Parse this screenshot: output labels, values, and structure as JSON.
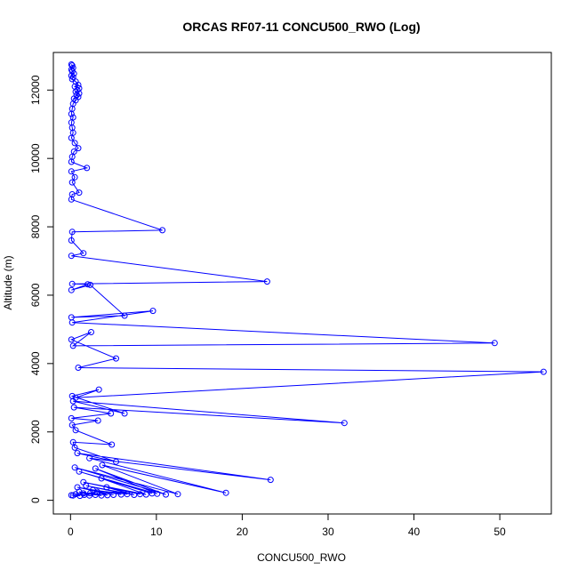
{
  "chart_data": {
    "type": "line",
    "title": "ORCAS RF07-11 CONCU500_RWO (Log)",
    "xlabel": "CONCU500_RWO",
    "ylabel": "Altitude (m)",
    "xlim": [
      -2,
      56
    ],
    "ylim": [
      -400,
      13100
    ],
    "xticks": [
      "0",
      "10",
      "20",
      "30",
      "40",
      "50"
    ],
    "yticks": [
      "0",
      "2000",
      "4000",
      "6000",
      "8000",
      "10000",
      "12000"
    ],
    "series_color": "#0000ff",
    "marker": "open-circle",
    "series": [
      {
        "points": [
          [
            0.1,
            12750
          ],
          [
            0.2,
            12720
          ],
          [
            0.3,
            12650
          ],
          [
            0.1,
            12600
          ],
          [
            0.2,
            12550
          ],
          [
            0.4,
            12480
          ],
          [
            0.1,
            12420
          ],
          [
            0.3,
            12380
          ],
          [
            0.2,
            12320
          ],
          [
            0.6,
            12250
          ],
          [
            0.9,
            12150
          ],
          [
            0.5,
            12100
          ],
          [
            1.0,
            12050
          ],
          [
            0.8,
            12000
          ],
          [
            0.6,
            11950
          ],
          [
            1.0,
            11900
          ],
          [
            0.7,
            11850
          ],
          [
            0.9,
            11800
          ],
          [
            0.4,
            11750
          ],
          [
            0.6,
            11700
          ],
          [
            0.3,
            11600
          ],
          [
            0.2,
            11450
          ],
          [
            0.1,
            11300
          ],
          [
            0.3,
            11200
          ],
          [
            0.1,
            11050
          ],
          [
            0.2,
            10900
          ],
          [
            0.3,
            10750
          ],
          [
            0.1,
            10600
          ],
          [
            0.5,
            10450
          ],
          [
            0.9,
            10300
          ],
          [
            0.4,
            10200
          ],
          [
            0.2,
            10050
          ],
          [
            0.1,
            9900
          ],
          [
            1.9,
            9720
          ],
          [
            0.1,
            9620
          ],
          [
            0.5,
            9450
          ],
          [
            0.2,
            9300
          ],
          [
            1.0,
            9000
          ],
          [
            0.2,
            8950
          ],
          [
            0.1,
            8800
          ],
          [
            10.7,
            7900
          ],
          [
            0.2,
            7850
          ],
          [
            0.1,
            7600
          ],
          [
            1.5,
            7230
          ],
          [
            0.1,
            7150
          ],
          [
            22.9,
            6400
          ],
          [
            0.2,
            6330
          ],
          [
            2.0,
            6320
          ],
          [
            0.1,
            6150
          ],
          [
            2.3,
            6300
          ],
          [
            6.3,
            5400
          ],
          [
            0.1,
            5350
          ],
          [
            9.6,
            5540
          ],
          [
            0.2,
            5200
          ],
          [
            49.4,
            4600
          ],
          [
            0.3,
            4520
          ],
          [
            2.4,
            4920
          ],
          [
            0.1,
            4700
          ],
          [
            5.3,
            4150
          ],
          [
            0.9,
            3880
          ],
          [
            55.1,
            3760
          ],
          [
            0.6,
            3000
          ],
          [
            3.3,
            3240
          ],
          [
            0.2,
            3050
          ],
          [
            6.3,
            2540
          ],
          [
            0.3,
            2900
          ],
          [
            31.9,
            2260
          ],
          [
            0.4,
            2720
          ],
          [
            4.7,
            2540
          ],
          [
            0.1,
            2400
          ],
          [
            3.2,
            2330
          ],
          [
            0.2,
            2200
          ],
          [
            0.6,
            2050
          ],
          [
            4.8,
            1630
          ],
          [
            0.3,
            1700
          ],
          [
            0.5,
            1540
          ],
          [
            5.3,
            1130
          ],
          [
            0.8,
            1380
          ],
          [
            23.3,
            600
          ],
          [
            2.2,
            1230
          ],
          [
            18.1,
            220
          ],
          [
            3.7,
            1030
          ],
          [
            12.5,
            180
          ],
          [
            0.5,
            960
          ],
          [
            11.1,
            170
          ],
          [
            2.9,
            930
          ],
          [
            10.1,
            190
          ],
          [
            1.0,
            840
          ],
          [
            9.5,
            200
          ],
          [
            3.6,
            640
          ],
          [
            8.8,
            170
          ],
          [
            1.5,
            530
          ],
          [
            8.1,
            180
          ],
          [
            4.2,
            380
          ],
          [
            7.4,
            160
          ],
          [
            1.8,
            430
          ],
          [
            6.6,
            180
          ],
          [
            2.6,
            300
          ],
          [
            5.9,
            170
          ],
          [
            0.8,
            380
          ],
          [
            5.0,
            160
          ],
          [
            3.1,
            250
          ],
          [
            4.3,
            150
          ],
          [
            2.3,
            210
          ],
          [
            3.6,
            140
          ],
          [
            1.5,
            200
          ],
          [
            2.9,
            160
          ],
          [
            1.0,
            250
          ],
          [
            2.2,
            140
          ],
          [
            0.6,
            180
          ],
          [
            1.6,
            160
          ],
          [
            0.3,
            140
          ],
          [
            1.1,
            130
          ],
          [
            0.1,
            150
          ]
        ]
      }
    ]
  }
}
